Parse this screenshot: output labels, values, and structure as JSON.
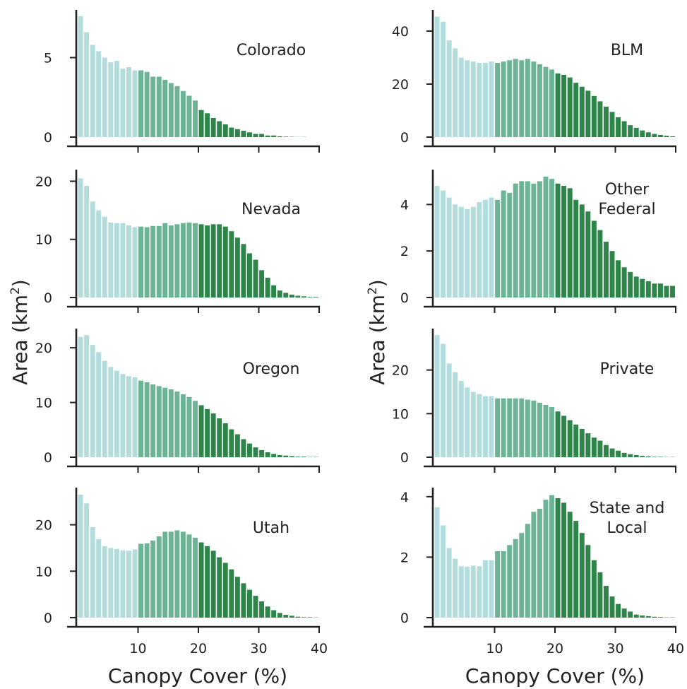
{
  "colors": {
    "light": "#b3dcdc",
    "mid": "#6db396",
    "dark": "#2e8549",
    "axis": "#222222"
  },
  "chart_data": [
    {
      "type": "bar",
      "label": "Colorado",
      "xlabel": "",
      "ylabel": "",
      "xlim": [
        0,
        40
      ],
      "ylim": [
        0,
        8
      ],
      "xticks": [
        10,
        20,
        30,
        40
      ],
      "yticks": [
        0,
        5
      ],
      "bins_start": 0,
      "bin_width": 1,
      "values": [
        7.6,
        6.6,
        5.8,
        5.4,
        5.0,
        4.7,
        4.8,
        4.3,
        4.4,
        4.2,
        4.2,
        4.1,
        3.8,
        3.8,
        3.6,
        3.4,
        3.2,
        2.9,
        2.6,
        2.3,
        1.7,
        1.5,
        1.2,
        1.0,
        0.8,
        0.6,
        0.5,
        0.4,
        0.3,
        0.2,
        0.2,
        0.1,
        0.1,
        0.05,
        0.03,
        0.02,
        0.01,
        0.01,
        0.0,
        0.0
      ]
    },
    {
      "type": "bar",
      "label": "BLM",
      "xlabel": "",
      "ylabel": "",
      "xlim": [
        0,
        40
      ],
      "ylim": [
        0,
        48
      ],
      "xticks": [
        10,
        20,
        30,
        40
      ],
      "yticks": [
        0,
        20,
        40
      ],
      "bins_start": 0,
      "bin_width": 1,
      "values": [
        45.5,
        43.5,
        36.5,
        33.5,
        30.0,
        29.0,
        28.5,
        28.0,
        28.0,
        28.5,
        28.0,
        28.5,
        29.0,
        29.5,
        29.0,
        29.5,
        28.5,
        27.5,
        26.5,
        25.5,
        24.0,
        23.5,
        22.5,
        20.5,
        19.0,
        17.5,
        15.5,
        13.5,
        11.5,
        9.5,
        7.5,
        6.0,
        4.5,
        3.5,
        2.5,
        1.8,
        1.2,
        0.8,
        0.5,
        0.3
      ]
    },
    {
      "type": "bar",
      "label": "Nevada",
      "xlabel": "",
      "ylabel": "",
      "xlim": [
        0,
        40
      ],
      "ylim": [
        0,
        22
      ],
      "xticks": [
        10,
        20,
        30,
        40
      ],
      "yticks": [
        0,
        10,
        20
      ],
      "bins_start": 0,
      "bin_width": 1,
      "values": [
        20.5,
        19.2,
        16.5,
        15.0,
        13.9,
        12.9,
        12.8,
        12.8,
        12.4,
        12.1,
        12.2,
        12.1,
        12.3,
        12.3,
        12.8,
        12.4,
        12.6,
        12.8,
        12.9,
        12.8,
        12.6,
        12.4,
        12.6,
        12.6,
        12.2,
        11.4,
        10.3,
        9.2,
        7.6,
        6.5,
        4.7,
        3.4,
        2.1,
        1.2,
        0.8,
        0.5,
        0.3,
        0.2,
        0.1,
        0.1
      ]
    },
    {
      "type": "bar",
      "label": "Other Federal",
      "xlabel": "",
      "ylabel": "",
      "xlim": [
        0,
        40
      ],
      "ylim": [
        0,
        5.5
      ],
      "xticks": [
        10,
        20,
        30,
        40
      ],
      "yticks": [
        0,
        2,
        4
      ],
      "bins_start": 0,
      "bin_width": 1,
      "values": [
        4.8,
        4.6,
        4.3,
        4.0,
        3.9,
        3.8,
        3.9,
        4.1,
        4.2,
        4.3,
        4.2,
        4.6,
        4.5,
        4.9,
        5.0,
        5.0,
        4.9,
        5.0,
        5.2,
        5.1,
        4.9,
        4.8,
        4.7,
        4.2,
        4.0,
        3.7,
        3.3,
        2.9,
        2.4,
        2.0,
        1.6,
        1.3,
        1.1,
        0.9,
        0.8,
        0.7,
        0.6,
        0.6,
        0.5,
        0.5
      ]
    },
    {
      "type": "bar",
      "label": "Oregon",
      "xlabel": "",
      "ylabel": "",
      "xlim": [
        0,
        40
      ],
      "ylim": [
        0,
        23.5
      ],
      "xticks": [
        10,
        20,
        30,
        40
      ],
      "yticks": [
        0,
        10,
        20
      ],
      "bins_start": 0,
      "bin_width": 1,
      "values": [
        22.0,
        22.3,
        20.5,
        19.2,
        17.6,
        16.5,
        15.8,
        15.2,
        14.8,
        14.6,
        14.0,
        13.7,
        13.3,
        13.0,
        12.7,
        12.4,
        12.0,
        11.5,
        11.0,
        10.3,
        9.5,
        8.8,
        8.0,
        7.1,
        6.2,
        5.1,
        4.2,
        3.3,
        2.5,
        1.8,
        1.3,
        0.9,
        0.6,
        0.4,
        0.3,
        0.2,
        0.1,
        0.1,
        0.05,
        0.05
      ]
    },
    {
      "type": "bar",
      "label": "Private",
      "xlabel": "",
      "ylabel": "",
      "xlim": [
        0,
        40
      ],
      "ylim": [
        0,
        29.5
      ],
      "xticks": [
        10,
        20,
        30,
        40
      ],
      "yticks": [
        0,
        10,
        20
      ],
      "bins_start": 0,
      "bin_width": 1,
      "values": [
        28.0,
        26.0,
        21.5,
        19.5,
        17.5,
        16.0,
        15.0,
        14.5,
        14.0,
        14.0,
        13.5,
        13.5,
        13.5,
        13.5,
        13.5,
        13.2,
        13.0,
        12.5,
        12.0,
        11.5,
        10.5,
        9.5,
        8.5,
        7.5,
        6.5,
        5.5,
        4.5,
        3.8,
        2.8,
        2.0,
        1.5,
        1.0,
        0.7,
        0.5,
        0.3,
        0.2,
        0.1,
        0.1,
        0.05,
        0.05
      ]
    },
    {
      "type": "bar",
      "label": "Utah",
      "xlabel": "",
      "ylabel": "",
      "xlim": [
        0,
        40
      ],
      "ylim": [
        0,
        28
      ],
      "xticks": [
        10,
        20,
        30,
        40
      ],
      "yticks": [
        0,
        10,
        20
      ],
      "bins_start": 0,
      "bin_width": 1,
      "values": [
        26.5,
        24.6,
        19.5,
        16.9,
        15.4,
        15.0,
        14.8,
        14.5,
        14.4,
        14.7,
        15.9,
        16.0,
        16.6,
        17.5,
        18.5,
        18.5,
        18.8,
        18.5,
        17.9,
        17.2,
        16.2,
        15.4,
        14.4,
        13.0,
        11.8,
        10.4,
        8.8,
        7.4,
        6.0,
        4.7,
        3.5,
        2.4,
        1.6,
        1.0,
        0.6,
        0.4,
        0.2,
        0.1,
        0.1,
        0.05
      ]
    },
    {
      "type": "bar",
      "label": "State and Local",
      "xlabel": "",
      "ylabel": "",
      "xlim": [
        0,
        40
      ],
      "ylim": [
        0,
        4.3
      ],
      "xticks": [
        10,
        20,
        30,
        40
      ],
      "yticks": [
        0,
        2,
        4
      ],
      "bins_start": 0,
      "bin_width": 1,
      "values": [
        3.65,
        3.05,
        2.3,
        1.95,
        1.7,
        1.68,
        1.72,
        1.7,
        1.9,
        1.9,
        2.2,
        2.2,
        2.4,
        2.6,
        2.8,
        3.1,
        3.5,
        3.6,
        3.9,
        4.05,
        3.95,
        3.8,
        3.5,
        3.2,
        2.8,
        2.4,
        1.9,
        1.5,
        1.05,
        0.7,
        0.45,
        0.3,
        0.2,
        0.1,
        0.07,
        0.05,
        0.03,
        0.02,
        0.01,
        0.01
      ]
    }
  ],
  "axes": {
    "y_title_main": "Area (km",
    "y_title_sup": "2",
    "y_title_end": ")",
    "x_title": "Canopy Cover (%)"
  },
  "panel_labels": {
    "colorado": "Colorado",
    "blm": "BLM",
    "nevada": "Nevada",
    "other_federal_line1": "Other",
    "other_federal_line2": "Federal",
    "oregon": "Oregon",
    "private": "Private",
    "utah": "Utah",
    "state_local_line1": "State and",
    "state_local_line2": "Local"
  }
}
